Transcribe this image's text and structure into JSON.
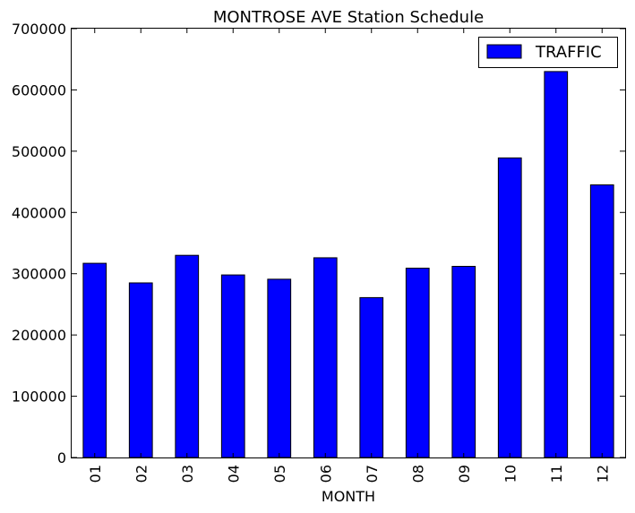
{
  "chart_data": {
    "type": "bar",
    "title": "MONTROSE AVE Station Schedule",
    "xlabel": "MONTH",
    "ylabel": "",
    "categories": [
      "01",
      "02",
      "03",
      "04",
      "05",
      "06",
      "07",
      "08",
      "09",
      "10",
      "11",
      "12"
    ],
    "series": [
      {
        "name": "TRAFFIC",
        "color": "#0000ff",
        "values": [
          317000,
          285000,
          330000,
          298000,
          291000,
          326000,
          261000,
          309000,
          312000,
          489000,
          630000,
          445000
        ]
      }
    ],
    "ylim": [
      0,
      700000
    ],
    "yticks": [
      "0",
      "100000",
      "200000",
      "300000",
      "400000",
      "500000",
      "600000",
      "700000"
    ],
    "grid": false,
    "legend_position": "top-right"
  }
}
